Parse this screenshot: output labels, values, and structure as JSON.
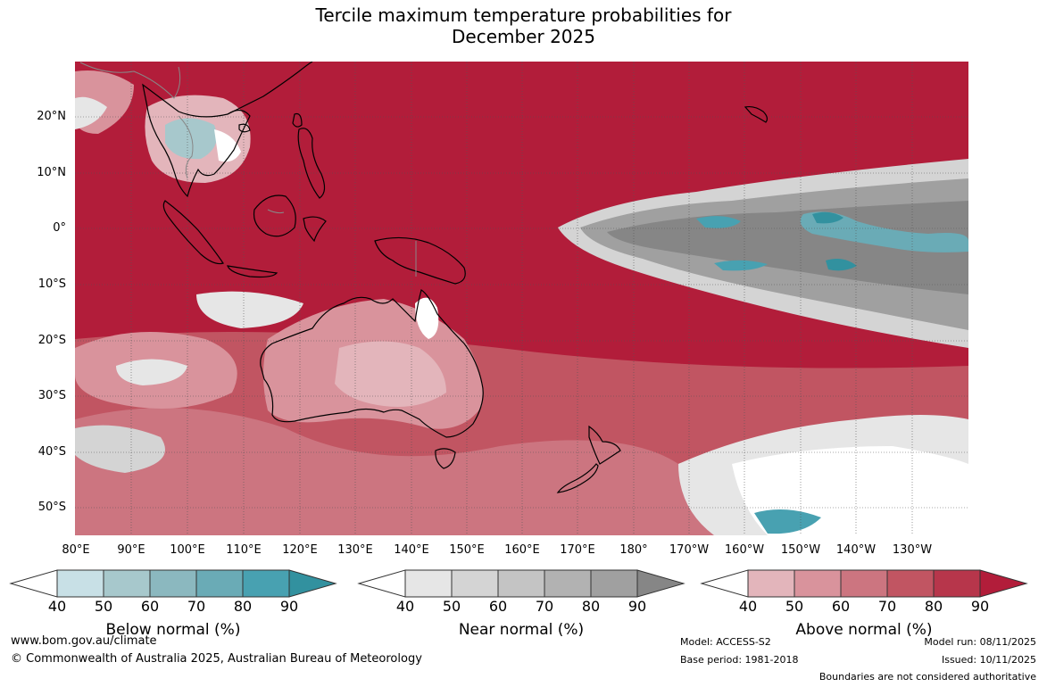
{
  "title_line1": "Tercile maximum temperature probabilities for",
  "title_line2": "December 2025",
  "lat_labels": [
    "20°N",
    "10°N",
    "0°",
    "10°S",
    "20°S",
    "30°S",
    "40°S",
    "50°S"
  ],
  "lon_labels": [
    "80°E",
    "90°E",
    "100°E",
    "110°E",
    "120°E",
    "130°E",
    "140°E",
    "150°E",
    "160°E",
    "170°E",
    "180°",
    "170°W",
    "160°W",
    "150°W",
    "140°W",
    "130°W"
  ],
  "colorbars": [
    {
      "name": "Below normal (%)",
      "ticks": [
        "40",
        "50",
        "60",
        "70",
        "80",
        "90"
      ],
      "colors": [
        "#ffffff",
        "#c8e0e6",
        "#a7c8cc",
        "#8bb8bf",
        "#6aabb6",
        "#48a1b1",
        "#32919f"
      ]
    },
    {
      "name": "Near normal (%)",
      "ticks": [
        "40",
        "50",
        "60",
        "70",
        "80",
        "90"
      ],
      "colors": [
        "#ffffff",
        "#e6e6e6",
        "#d4d4d4",
        "#c4c4c4",
        "#b2b2b2",
        "#a0a0a0",
        "#868686"
      ]
    },
    {
      "name": "Above normal (%)",
      "ticks": [
        "40",
        "50",
        "60",
        "70",
        "80",
        "90"
      ],
      "colors": [
        "#ffffff",
        "#e3b5bb",
        "#d9939c",
        "#cc7580",
        "#c15562",
        "#b7364b",
        "#b21d3a"
      ]
    }
  ],
  "footer": {
    "url": "www.bom.gov.au/climate",
    "copyright": "© Commonwealth of Australia 2025, Australian Bureau of Meteorology",
    "model": "Model: ACCESS-S2",
    "base_period": "Base period: 1981-2018",
    "model_run": "Model run: 08/11/2025",
    "issued": "Issued: 10/11/2025",
    "disclaimer": "Boundaries are not considered authoritative"
  }
}
